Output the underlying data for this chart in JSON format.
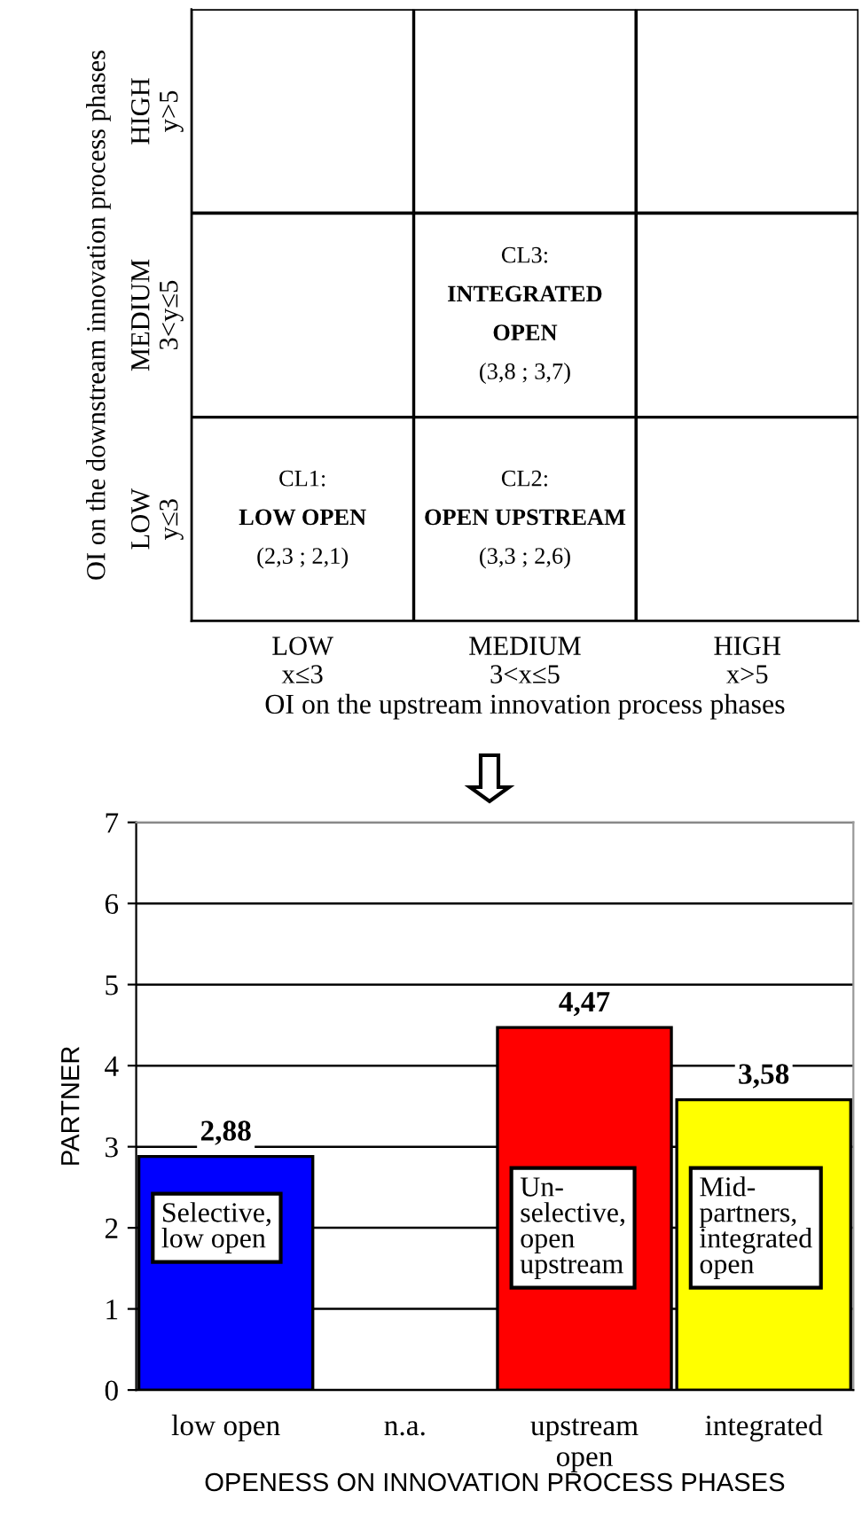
{
  "chart_data": [
    {
      "type": "heatmap",
      "xlabel": "OI on the upstream innovation process phases",
      "ylabel": "OI on the downstream innovation process phases",
      "categories": [
        "LOW\nx≤3",
        "MEDIUM\n3<x≤5",
        "HIGH\nx>5"
      ],
      "y_categories": [
        "HIGH\ny>5",
        "MEDIUM\n3<y≤5",
        "LOW\ny≤3"
      ],
      "cells": [
        [
          null,
          null,
          null
        ],
        [
          null,
          null,
          null
        ],
        [
          null,
          null,
          null
        ]
      ],
      "cell_labels": [
        [
          null,
          null,
          null
        ],
        [
          null,
          "CL3:\nINTEGRATED\nOPEN\n(3,8 ; 3,7)",
          null
        ],
        [
          "CL1:\nLOW OPEN\n(2,3 ; 2,1)",
          "CL2:\nOPEN UPSTREAM\n(3,3 ; 2,6)",
          null
        ]
      ]
    },
    {
      "type": "bar",
      "xlabel": "OPENESS ON INNOVATION PROCESS PHASES",
      "ylabel": "PARTNER",
      "categories": [
        "low open",
        "n.a.",
        "upstream\nopen",
        "integrated"
      ],
      "values": [
        2.88,
        null,
        4.47,
        3.58
      ],
      "colors": [
        "#0000ff",
        "#ffffff",
        "#ff0000",
        "#ffff00"
      ],
      "value_labels": [
        "2,88",
        null,
        "4,47",
        "3,58"
      ],
      "ylim": [
        0,
        7
      ],
      "yticks": [
        0,
        1,
        2,
        3,
        4,
        5,
        6,
        7
      ],
      "grid": "y",
      "annotations": [
        "Selective,\nlow open",
        "Un-\nselective,\nopen\nupstream",
        "Mid-\npartners,\nintegrated\nopen"
      ]
    }
  ]
}
